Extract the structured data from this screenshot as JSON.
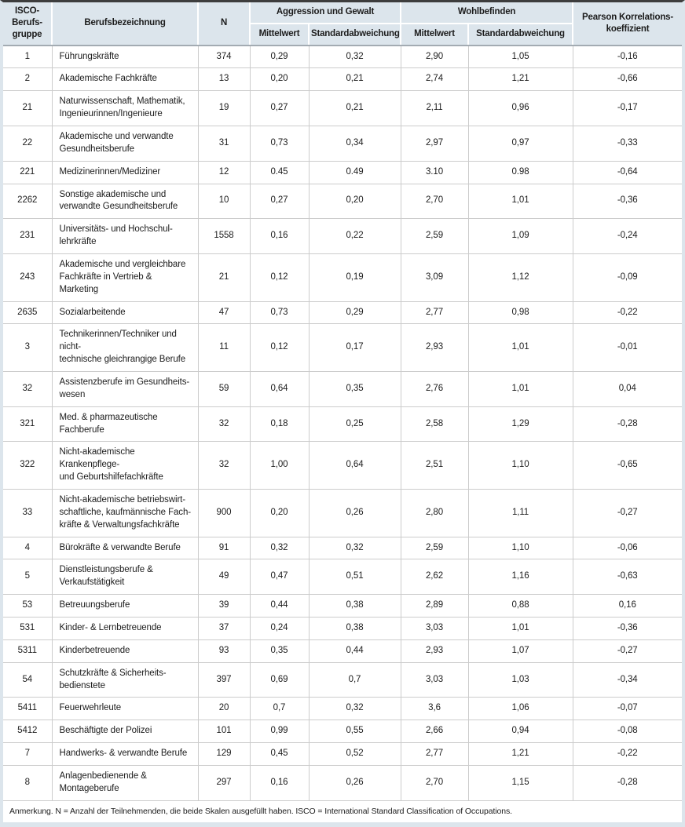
{
  "colors": {
    "header_bg": "#dce5ec",
    "frame": "#dce5ec",
    "top_border": "#3d3d3d",
    "grid_line": "#cccccc",
    "header_divider": "#a3abb2",
    "text": "#1c1c1c"
  },
  "table": {
    "header": {
      "col_isco": "ISCO-\nBerufs-\ngruppe",
      "col_beruf": "Berufsbezeichnung",
      "col_n": "N",
      "group_aggression": "Aggression und Gewalt",
      "group_wohlbefinden": "Wohlbefinden",
      "col_pearson": "Pearson Korrelations-\nkoeffizient",
      "sub_mittelwert": "Mittelwert",
      "sub_standardabweichung": "Standardabweichung"
    },
    "rows": [
      {
        "isco": "1",
        "beruf": "Führungskräfte",
        "n": "374",
        "agg_mw": "0,29",
        "agg_sd": "0,32",
        "wb_mw": "2,90",
        "wb_sd": "1,05",
        "r": "-0,16"
      },
      {
        "isco": "2",
        "beruf": "Akademische Fachkräfte",
        "n": "13",
        "agg_mw": "0,20",
        "agg_sd": "0,21",
        "wb_mw": "2,74",
        "wb_sd": "1,21",
        "r": "-0,66"
      },
      {
        "isco": "21",
        "beruf": "Naturwissenschaft, Mathematik,\nIngenieurinnen/Ingenieure",
        "n": "19",
        "agg_mw": "0,27",
        "agg_sd": "0,21",
        "wb_mw": "2,11",
        "wb_sd": "0,96",
        "r": "-0,17"
      },
      {
        "isco": "22",
        "beruf": "Akademische und verwandte\nGesundheitsberufe",
        "n": "31",
        "agg_mw": "0,73",
        "agg_sd": "0,34",
        "wb_mw": "2,97",
        "wb_sd": "0,97",
        "r": "-0,33"
      },
      {
        "isco": "221",
        "beruf": "Medizinerinnen/Mediziner",
        "n": "12",
        "agg_mw": "0.45",
        "agg_sd": "0.49",
        "wb_mw": "3.10",
        "wb_sd": "0.98",
        "r": "-0,64"
      },
      {
        "isco": "2262",
        "beruf": "Sonstige akademische und\nverwandte Gesundheitsberufe",
        "n": "10",
        "agg_mw": "0,27",
        "agg_sd": "0,20",
        "wb_mw": "2,70",
        "wb_sd": "1,01",
        "r": "-0,36"
      },
      {
        "isco": "231",
        "beruf": "Universitäts- und Hochschul-\nlehrkräfte",
        "n": "1558",
        "agg_mw": "0,16",
        "agg_sd": "0,22",
        "wb_mw": "2,59",
        "wb_sd": "1,09",
        "r": "-0,24"
      },
      {
        "isco": "243",
        "beruf": "Akademische und vergleichbare\nFachkräfte in Vertrieb & Marketing",
        "n": "21",
        "agg_mw": "0,12",
        "agg_sd": "0,19",
        "wb_mw": "3,09",
        "wb_sd": "1,12",
        "r": "-0,09"
      },
      {
        "isco": "2635",
        "beruf": "Sozialarbeitende",
        "n": "47",
        "agg_mw": "0,73",
        "agg_sd": "0,29",
        "wb_mw": "2,77",
        "wb_sd": "0,98",
        "r": "-0,22"
      },
      {
        "isco": "3",
        "beruf": "Technikerinnen/Techniker und nicht-\ntechnische gleichrangige Berufe",
        "n": "11",
        "agg_mw": "0,12",
        "agg_sd": "0,17",
        "wb_mw": "2,93",
        "wb_sd": "1,01",
        "r": "-0,01"
      },
      {
        "isco": "32",
        "beruf": "Assistenzberufe im Gesundheits-\nwesen",
        "n": "59",
        "agg_mw": "0,64",
        "agg_sd": "0,35",
        "wb_mw": "2,76",
        "wb_sd": "1,01",
        "r": "0,04"
      },
      {
        "isco": "321",
        "beruf": "Med. & pharmazeutische Fachberufe",
        "n": "32",
        "agg_mw": "0,18",
        "agg_sd": "0,25",
        "wb_mw": "2,58",
        "wb_sd": "1,29",
        "r": "-0,28"
      },
      {
        "isco": "322",
        "beruf": "Nicht-akademische Krankenpflege-\nund Geburtshilfefachkräfte",
        "n": "32",
        "agg_mw": "1,00",
        "agg_sd": "0,64",
        "wb_mw": "2,51",
        "wb_sd": "1,10",
        "r": "-0,65"
      },
      {
        "isco": "33",
        "beruf": "Nicht-akademische betriebswirt-\nschaftliche, kaufmännische Fach-\nkräfte & Verwaltungsfachkräfte",
        "n": "900",
        "agg_mw": "0,20",
        "agg_sd": "0,26",
        "wb_mw": "2,80",
        "wb_sd": "1,11",
        "r": "-0,27"
      },
      {
        "isco": "4",
        "beruf": "Bürokräfte & verwandte Berufe",
        "n": "91",
        "agg_mw": "0,32",
        "agg_sd": "0,32",
        "wb_mw": "2,59",
        "wb_sd": "1,10",
        "r": "-0,06"
      },
      {
        "isco": "5",
        "beruf": "Dienstleistungsberufe &\nVerkaufstätigkeit",
        "n": "49",
        "agg_mw": "0,47",
        "agg_sd": "0,51",
        "wb_mw": "2,62",
        "wb_sd": "1,16",
        "r": "-0,63"
      },
      {
        "isco": "53",
        "beruf": "Betreuungsberufe",
        "n": "39",
        "agg_mw": "0,44",
        "agg_sd": "0,38",
        "wb_mw": "2,89",
        "wb_sd": "0,88",
        "r": "0,16"
      },
      {
        "isco": "531",
        "beruf": "Kinder- & Lernbetreuende",
        "n": "37",
        "agg_mw": "0,24",
        "agg_sd": "0,38",
        "wb_mw": "3,03",
        "wb_sd": "1,01",
        "r": "-0,36"
      },
      {
        "isco": "5311",
        "beruf": "Kinderbetreuende",
        "n": "93",
        "agg_mw": "0,35",
        "agg_sd": "0,44",
        "wb_mw": "2,93",
        "wb_sd": "1,07",
        "r": "-0,27"
      },
      {
        "isco": "54",
        "beruf": "Schutzkräfte & Sicherheits-\nbedienstete",
        "n": "397",
        "agg_mw": "0,69",
        "agg_sd": "0,7",
        "wb_mw": "3,03",
        "wb_sd": "1,03",
        "r": "-0,34"
      },
      {
        "isco": "5411",
        "beruf": "Feuerwehrleute",
        "n": "20",
        "agg_mw": "0,7",
        "agg_sd": "0,32",
        "wb_mw": "3,6",
        "wb_sd": "1,06",
        "r": "-0,07"
      },
      {
        "isco": "5412",
        "beruf": "Beschäftigte der Polizei",
        "n": "101",
        "agg_mw": "0,99",
        "agg_sd": "0,55",
        "wb_mw": "2,66",
        "wb_sd": "0,94",
        "r": "-0,08"
      },
      {
        "isco": "7",
        "beruf": "Handwerks- & verwandte Berufe",
        "n": "129",
        "agg_mw": "0,45",
        "agg_sd": "0,52",
        "wb_mw": "2,77",
        "wb_sd": "1,21",
        "r": "-0,22"
      },
      {
        "isco": "8",
        "beruf": "Anlagenbedienende &\nMontageberufe",
        "n": "297",
        "agg_mw": "0,16",
        "agg_sd": "0,26",
        "wb_mw": "2,70",
        "wb_sd": "1,15",
        "r": "-0,28"
      }
    ],
    "note": "Anmerkung. N = Anzahl der Teilnehmenden, die beide Skalen ausgefüllt haben. ISCO = International Standard Classification of Occupations."
  }
}
